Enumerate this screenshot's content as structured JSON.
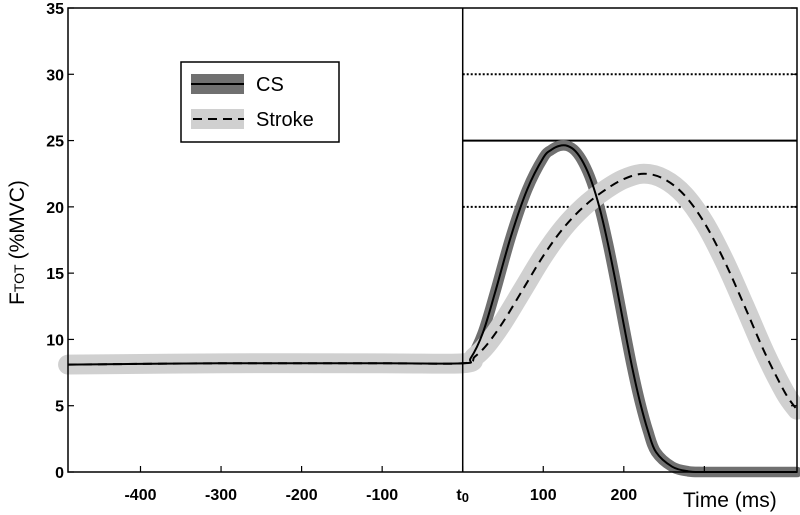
{
  "chart_data": {
    "type": "line",
    "xlabel": "Time (ms)",
    "ylabel": "F",
    "ylabel_sub": "TOT",
    "ylabel_unit": "(%MVC)",
    "xlim": [
      -490,
      415
    ],
    "ylim": [
      0,
      35
    ],
    "x_ticks": [
      {
        "value": -400,
        "label": "-400"
      },
      {
        "value": -300,
        "label": "-300"
      },
      {
        "value": -200,
        "label": "-200"
      },
      {
        "value": -100,
        "label": "-100"
      },
      {
        "value": 0,
        "label": "t",
        "sub": "0"
      },
      {
        "value": 100,
        "label": "100"
      },
      {
        "value": 200,
        "label": "200"
      }
    ],
    "y_ticks": [
      {
        "value": 0,
        "label": "0"
      },
      {
        "value": 5,
        "label": "5"
      },
      {
        "value": 10,
        "label": "10"
      },
      {
        "value": 15,
        "label": "15"
      },
      {
        "value": 20,
        "label": "20"
      },
      {
        "value": 25,
        "label": "25"
      },
      {
        "value": 30,
        "label": "30"
      },
      {
        "value": 35,
        "label": "35"
      }
    ],
    "grid": false,
    "legend_position": "top-left",
    "reference_lines": [
      {
        "y": 25,
        "style": "solid"
      },
      {
        "y": 30,
        "style": "dotted"
      },
      {
        "y": 20,
        "style": "dotted"
      }
    ],
    "series": [
      {
        "name": "CS",
        "style": "solid",
        "color": "#000000",
        "band_color": "#707070",
        "band_halfwidth": 0.4,
        "x": [
          -490,
          -300,
          -100,
          0,
          10,
          25,
          40,
          60,
          80,
          100,
          110,
          120,
          130,
          140,
          150,
          160,
          170,
          180,
          190,
          200,
          210,
          220,
          230,
          240,
          260,
          280,
          300,
          350,
          415
        ],
        "y": [
          8.1,
          8.2,
          8.2,
          8.2,
          8.6,
          10.5,
          13.5,
          17.8,
          21.3,
          23.7,
          24.3,
          24.6,
          24.6,
          24.2,
          23.3,
          21.9,
          19.9,
          17.3,
          14.3,
          11.1,
          8.0,
          5.3,
          3.1,
          1.5,
          0.4,
          0.05,
          0,
          0,
          0
        ]
      },
      {
        "name": "Stroke",
        "style": "dashed",
        "color": "#000000",
        "band_color": "#d0d0d0",
        "band_halfwidth": 0.75,
        "x": [
          -490,
          -300,
          -100,
          0,
          15,
          30,
          50,
          75,
          100,
          125,
          150,
          175,
          200,
          225,
          250,
          275,
          300,
          325,
          350,
          375,
          400,
          415
        ],
        "y": [
          8.1,
          8.2,
          8.2,
          8.2,
          8.7,
          9.6,
          11.3,
          13.8,
          16.3,
          18.4,
          20.0,
          21.2,
          22.1,
          22.5,
          22.1,
          20.9,
          18.8,
          15.9,
          12.5,
          9.0,
          6.0,
          4.7
        ]
      }
    ]
  }
}
